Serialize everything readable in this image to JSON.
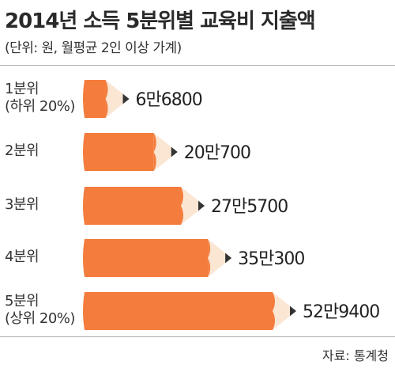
{
  "title": "2014년 소득 5분위별 교육비 지출액",
  "subtitle": "(단위: 원, 월평균 2인 이상 가계)",
  "source": "자료: 통계청",
  "colors": {
    "bar": "#F47C3C",
    "tip_wood": "#FBE6D4",
    "tip_lead": "#333333"
  },
  "chart_data": {
    "type": "bar",
    "orientation": "horizontal",
    "title": "2014년 소득 5분위별 교육비 지출액",
    "subtitle": "(단위: 원, 월평균 2인 이상 가계)",
    "unit": "원",
    "categories": [
      "1분위 (하위 20%)",
      "2분위",
      "3분위",
      "4분위",
      "5분위 (상위 20%)"
    ],
    "category_lines": [
      [
        "1분위",
        "(하위 20%)"
      ],
      [
        "2분위"
      ],
      [
        "3분위"
      ],
      [
        "4분위"
      ],
      [
        "5분위",
        "(상위 20%)"
      ]
    ],
    "values": [
      66800,
      200700,
      275700,
      350300,
      529400
    ],
    "value_labels": [
      "6만6800",
      "20만700",
      "27만5700",
      "35만300",
      "52만9400"
    ],
    "bar_style": "pencil",
    "grid": false,
    "legend": "none"
  }
}
